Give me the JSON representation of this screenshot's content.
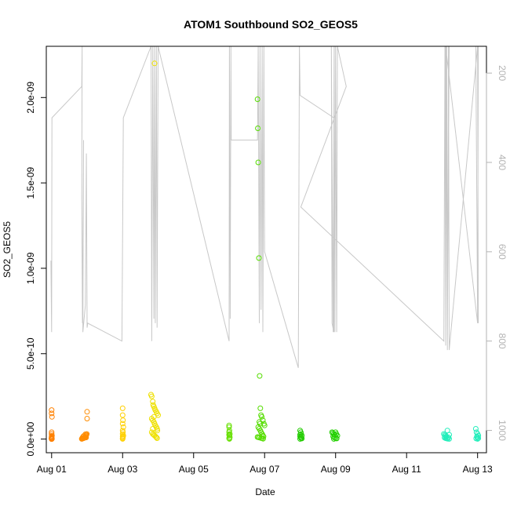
{
  "chart_data": {
    "type": "scatter",
    "title": "ATOM1 Southbound SO2_GEOS5",
    "xlabel": "Date",
    "ylabel": "SO2_GEOS5",
    "xlim": [
      -0.15,
      12.25
    ],
    "ylim": [
      -8e-11,
      2.3e-09
    ],
    "x_ticks": [
      {
        "value": 0,
        "label": "Aug 01"
      },
      {
        "value": 2,
        "label": "Aug 03"
      },
      {
        "value": 4,
        "label": "Aug 05"
      },
      {
        "value": 6,
        "label": "Aug 07"
      },
      {
        "value": 8,
        "label": "Aug 09"
      },
      {
        "value": 10,
        "label": "Aug 11"
      },
      {
        "value": 12,
        "label": "Aug 13"
      }
    ],
    "y_ticks": [
      {
        "value": 0,
        "label": "0.0e+00"
      },
      {
        "value": 5e-10,
        "label": "5.0e-10"
      },
      {
        "value": 1e-09,
        "label": "1.0e-09"
      },
      {
        "value": 1.5e-09,
        "label": "1.5e-09"
      },
      {
        "value": 2e-09,
        "label": "2.0e-09"
      }
    ],
    "right_axis": {
      "ylim": [
        1050,
        140
      ],
      "ticks": [
        200,
        400,
        600,
        800,
        1000
      ],
      "color": "#b3b3b3",
      "line_color": "#c8c8c8"
    },
    "pressure_path": [
      [
        -0.02,
        620
      ],
      [
        0.0,
        780
      ],
      [
        0.01,
        300
      ],
      [
        0.85,
        230
      ],
      [
        0.86,
        130
      ],
      [
        0.85,
        480
      ],
      [
        0.87,
        760
      ],
      [
        0.9,
        350
      ],
      [
        0.88,
        780
      ],
      [
        0.95,
        720
      ],
      [
        0.98,
        380
      ],
      [
        1.0,
        770
      ],
      [
        1.02,
        760
      ],
      [
        1.98,
        800
      ],
      [
        2.02,
        300
      ],
      [
        2.8,
        140
      ],
      [
        2.82,
        800
      ],
      [
        2.85,
        140
      ],
      [
        2.88,
        750
      ],
      [
        2.9,
        140
      ],
      [
        2.92,
        760
      ],
      [
        2.95,
        140
      ],
      [
        2.97,
        770
      ],
      [
        3.0,
        140
      ],
      [
        5.0,
        800
      ],
      [
        5.01,
        140
      ],
      [
        5.03,
        750
      ],
      [
        5.05,
        140
      ],
      [
        5.06,
        350
      ],
      [
        5.8,
        350
      ],
      [
        5.82,
        140
      ],
      [
        5.85,
        760
      ],
      [
        5.87,
        140
      ],
      [
        5.9,
        730
      ],
      [
        5.93,
        140
      ],
      [
        5.95,
        780
      ],
      [
        5.98,
        140
      ],
      [
        6.0,
        600
      ],
      [
        6.95,
        860
      ],
      [
        6.98,
        140
      ],
      [
        7.0,
        250
      ],
      [
        7.95,
        300
      ],
      [
        7.95,
        780
      ],
      [
        7.9,
        760
      ],
      [
        7.88,
        140
      ],
      [
        7.93,
        780
      ],
      [
        7.96,
        140
      ],
      [
        7.98,
        780
      ],
      [
        8.0,
        140
      ],
      [
        8.03,
        780
      ],
      [
        8.05,
        140
      ],
      [
        8.3,
        230
      ],
      [
        7.02,
        500
      ],
      [
        11.05,
        800
      ],
      [
        11.08,
        140
      ],
      [
        11.1,
        780
      ],
      [
        11.13,
        140
      ],
      [
        11.15,
        780
      ],
      [
        11.2,
        140
      ],
      [
        11.95,
        140
      ],
      [
        12.0,
        750
      ],
      [
        12.02,
        140
      ],
      [
        12.0,
        760
      ],
      [
        11.1,
        140
      ],
      [
        11.1,
        810
      ],
      [
        11.12,
        140
      ],
      [
        11.15,
        820
      ],
      [
        11.18,
        140
      ],
      [
        11.2,
        820
      ],
      [
        12.0,
        140
      ],
      [
        12.02,
        760
      ]
    ],
    "series": [
      {
        "color": "#FF8000",
        "x": [
          0.0,
          0.0,
          0.01,
          0.0,
          0.0,
          0.01,
          0.0,
          0.0,
          0.0,
          0.0,
          0.0,
          0.0,
          0.0,
          0.0,
          0.01,
          0.0,
          0.0,
          0.0
        ],
        "y": [
          1.7e-10,
          1.5e-10,
          1.3e-10,
          4e-11,
          3e-11,
          2e-11,
          1.5e-11,
          1e-11,
          8e-12,
          6e-12,
          5e-12,
          4e-12,
          3e-12,
          2e-12,
          1.5e-12,
          1e-12,
          5e-13,
          0
        ]
      },
      {
        "color": "#FF8C00",
        "x": [
          0.85,
          0.86,
          0.87,
          0.88,
          0.9,
          0.9,
          0.92,
          0.93,
          0.95,
          0.96,
          0.97,
          0.98,
          0.99,
          1.0,
          0.88,
          0.9,
          0.95,
          1.0,
          0.86,
          0.97
        ],
        "y": [
          1e-12,
          2e-12,
          3e-12,
          4e-12,
          5e-12,
          6e-12,
          7e-12,
          8e-12,
          1e-11,
          1.5e-11,
          2e-11,
          2.5e-11,
          3e-11,
          1.6e-10,
          1.2e-11,
          1.8e-11,
          2.8e-11,
          1.2e-10,
          5e-12,
          9e-12
        ]
      },
      {
        "color": "#FFD000",
        "x": [
          2.0,
          2.0,
          2.01,
          2.0,
          2.02,
          2.0,
          2.01,
          2.0,
          2.02,
          2.0,
          2.01,
          2.0,
          2.0
        ],
        "y": [
          1.8e-10,
          1.4e-10,
          1.1e-10,
          9e-11,
          7e-11,
          5e-11,
          4e-11,
          3e-11,
          2e-11,
          1.5e-11,
          1e-11,
          5e-12,
          1e-12
        ]
      },
      {
        "color": "#EEE000",
        "x": [
          2.8,
          2.82,
          2.85,
          2.86,
          2.88,
          2.9,
          2.92,
          2.95,
          2.97,
          3.0,
          2.82,
          2.85,
          2.88,
          2.9,
          2.92,
          2.95,
          2.97,
          2.98,
          2.82,
          2.85,
          2.88,
          2.9,
          2.93,
          2.95,
          2.97,
          2.9,
          2.88,
          2.85
        ],
        "y": [
          2.6e-10,
          2.5e-10,
          2.2e-10,
          2e-10,
          1.9e-10,
          1.8e-10,
          1.7e-10,
          1.6e-10,
          1.5e-10,
          1.4e-10,
          1.2e-10,
          1.1e-10,
          1e-10,
          9e-11,
          8e-11,
          7e-11,
          6e-11,
          5e-11,
          4e-11,
          3e-11,
          2.5e-11,
          2e-11,
          1.5e-11,
          1e-11,
          5e-12,
          2.2e-09,
          1.3e-10,
          6e-11
        ]
      },
      {
        "color": "#66E000",
        "x": [
          5.0,
          5.0,
          5.01,
          5.0,
          5.02,
          5.0,
          5.01,
          5.02,
          5.0,
          5.01
        ],
        "y": [
          8e-11,
          7e-11,
          5e-11,
          4e-11,
          3e-11,
          2.5e-11,
          2e-11,
          1e-11,
          5e-12,
          1e-12
        ]
      },
      {
        "color": "#55DD00",
        "x": [
          5.8,
          5.81,
          5.82,
          5.84,
          5.86,
          5.88,
          5.9,
          5.92,
          5.95,
          5.98,
          6.0,
          5.82,
          5.85,
          5.88,
          5.9,
          5.93,
          5.95,
          5.97,
          5.8,
          5.83,
          5.86,
          5.9,
          5.93,
          5.96,
          5.85,
          5.87
        ],
        "y": [
          1.99e-09,
          1.82e-09,
          1.62e-09,
          1.06e-09,
          3.7e-10,
          1.8e-10,
          1.4e-10,
          1.3e-10,
          1.1e-10,
          9e-11,
          8e-11,
          7e-11,
          6e-11,
          5e-11,
          4e-11,
          3e-11,
          2e-11,
          1.5e-11,
          1.2e-11,
          1e-11,
          8e-12,
          6e-12,
          4e-12,
          2e-12,
          1e-10,
          9e-11
        ]
      },
      {
        "color": "#22CC00",
        "x": [
          7.0,
          7.02,
          7.03,
          7.0,
          7.05,
          7.0,
          7.02,
          7.03,
          7.05,
          7.0
        ],
        "y": [
          5e-11,
          4e-11,
          3e-11,
          2.5e-11,
          2e-11,
          1.5e-11,
          1e-11,
          5e-12,
          3e-12,
          1e-12
        ]
      },
      {
        "color": "#22D000",
        "x": [
          7.9,
          7.92,
          7.95,
          7.98,
          8.0,
          8.02,
          8.05,
          7.93,
          7.96,
          8.0,
          8.03,
          7.95
        ],
        "y": [
          4e-11,
          3.5e-11,
          3e-11,
          2.5e-11,
          4e-11,
          3e-11,
          2e-11,
          1.5e-11,
          1e-11,
          5e-12,
          3e-12,
          1e-12
        ]
      },
      {
        "color": "#22EEBB",
        "x": [
          11.05,
          11.08,
          11.1,
          11.12,
          11.15,
          11.18,
          11.2,
          11.07,
          11.1,
          11.13,
          11.16,
          11.2,
          11.1
        ],
        "y": [
          3e-11,
          2.5e-11,
          2e-11,
          1.5e-11,
          5e-11,
          1e-11,
          2.5e-11,
          8e-12,
          5e-12,
          3e-12,
          2e-12,
          1e-12,
          1.2e-11
        ]
      },
      {
        "color": "#22EEBB",
        "x": [
          11.95,
          11.97,
          12.0,
          12.02,
          11.98,
          12.0,
          12.02,
          11.96,
          12.0
        ],
        "y": [
          6e-11,
          4e-11,
          3e-11,
          2e-11,
          1.5e-11,
          1e-11,
          5e-12,
          3e-12,
          1e-12
        ]
      }
    ]
  }
}
